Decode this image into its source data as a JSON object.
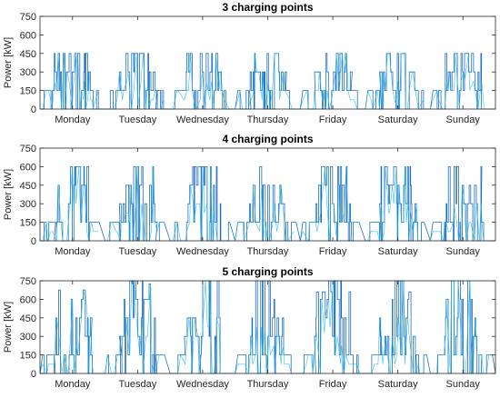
{
  "colors": {
    "signal": "#1f6fbf",
    "signal_light": "#18b4e6",
    "axis": "#262626",
    "grid": "#d9d9d9"
  },
  "chart_data": [
    {
      "type": "line",
      "title": "3 charging points",
      "ylabel": "Power [kW]",
      "xlabel": "",
      "ylim": [
        0,
        750
      ],
      "yticks": [
        0,
        150,
        300,
        450,
        600,
        750
      ],
      "categories": [
        "Monday",
        "Tuesday",
        "Wednesday",
        "Thursday",
        "Friday",
        "Saturday",
        "Sunday"
      ],
      "levels": [
        150,
        300,
        450
      ],
      "daily_peaks": [
        450,
        450,
        450,
        450,
        450,
        450,
        450
      ],
      "grid": false
    },
    {
      "type": "line",
      "title": "4 charging points",
      "ylabel": "Power [kW]",
      "xlabel": "",
      "ylim": [
        0,
        750
      ],
      "yticks": [
        0,
        150,
        300,
        450,
        600,
        750
      ],
      "categories": [
        "Monday",
        "Tuesday",
        "Wednesday",
        "Thursday",
        "Friday",
        "Saturday",
        "Sunday"
      ],
      "levels": [
        150,
        300,
        450,
        600
      ],
      "daily_peaks": [
        600,
        600,
        600,
        600,
        600,
        600,
        600
      ],
      "grid": false
    },
    {
      "type": "line",
      "title": "5 charging points",
      "ylabel": "Power [kW]",
      "xlabel": "",
      "ylim": [
        0,
        750
      ],
      "yticks": [
        0,
        150,
        300,
        450,
        600,
        750
      ],
      "categories": [
        "Monday",
        "Tuesday",
        "Wednesday",
        "Thursday",
        "Friday",
        "Saturday",
        "Sunday"
      ],
      "levels": [
        150,
        300,
        450,
        600,
        750
      ],
      "daily_peaks": [
        675,
        725,
        750,
        750,
        660,
        660,
        750
      ],
      "grid": false
    }
  ]
}
